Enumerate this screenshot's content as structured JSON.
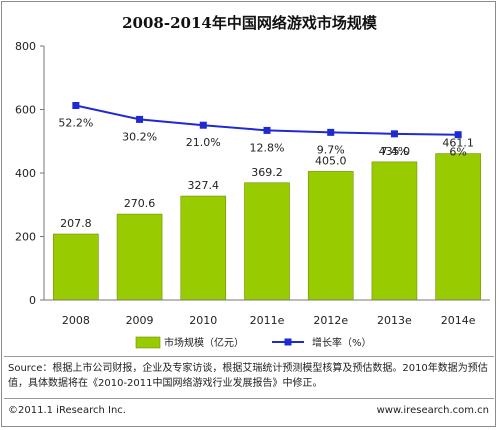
{
  "chart_data": {
    "type": "bar+line",
    "title": "2008-2014年中国网络游戏市场规模",
    "categories": [
      "2008",
      "2009",
      "2010",
      "2011e",
      "2012e",
      "2013e",
      "2014e"
    ],
    "series": [
      {
        "name": "市场规模（亿元）",
        "type": "bar",
        "values": [
          207.8,
          270.6,
          327.4,
          369.2,
          405.0,
          435.0,
          461.1
        ],
        "labels": [
          "207.8",
          "270.6",
          "327.4",
          "369.2",
          "405.0",
          "435.0",
          "461.1"
        ],
        "color": "#99cc00"
      },
      {
        "name": "增长率（%）",
        "type": "line",
        "values": [
          52.2,
          30.2,
          21.0,
          12.8,
          9.7,
          7.4,
          6.0
        ],
        "labels": [
          "52.2%",
          "30.2%",
          "21.0%",
          "12.8%",
          "9.7%",
          "7.4%",
          "6%"
        ],
        "color": "#1f2ad0"
      }
    ],
    "ylim": [
      0,
      800
    ],
    "yticks": [
      "0",
      "200",
      "400",
      "600",
      "800"
    ],
    "grid": false,
    "legend_position": "bottom"
  },
  "notes": {
    "source": "Source：根据上市公司财报，企业及专家访谈，根据艾瑞统计预测模型核算及预估数据。2010年数据为预估值，具体数据将在《2010-2011中国网络游戏行业发展报告》中修正。",
    "copyright": "©2011.1 iResearch Inc.",
    "website": "www.iresearch.com.cn"
  }
}
